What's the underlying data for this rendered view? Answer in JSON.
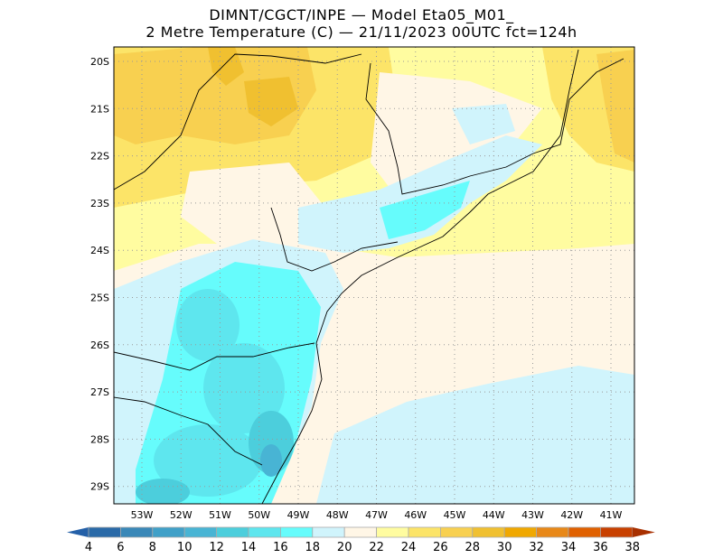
{
  "title": {
    "line1": "DIMNT/CGCT/INPE —  Model Eta05_M01_",
    "line2": "2 Metre Temperature (C) —  21/11/2023 00UTC fct=124h"
  },
  "map": {
    "lat_labels": [
      "20S",
      "21S",
      "22S",
      "23S",
      "24S",
      "25S",
      "26S",
      "27S",
      "28S",
      "29S"
    ],
    "lon_labels": [
      "53W",
      "52W",
      "51W",
      "50W",
      "49W",
      "48W",
      "47W",
      "46W",
      "45W",
      "44W",
      "43W",
      "42W",
      "41W"
    ]
  },
  "colorbar": {
    "ticks": [
      "4",
      "6",
      "8",
      "10",
      "12",
      "14",
      "16",
      "18",
      "20",
      "22",
      "24",
      "26",
      "28",
      "30",
      "32",
      "34",
      "36",
      "38"
    ],
    "under_color": "#2460a8",
    "over_color": "#a83000",
    "colors": [
      "#2a6aa8",
      "#3a88b8",
      "#40a0c8",
      "#48b4d4",
      "#4ccedc",
      "#5ee6ee",
      "#66fcfc",
      "#d0f4fc",
      "#fff6e6",
      "#fffca0",
      "#fce468",
      "#f8d050",
      "#f0c030",
      "#f0a800",
      "#e88818",
      "#e06000",
      "#c84000"
    ]
  }
}
